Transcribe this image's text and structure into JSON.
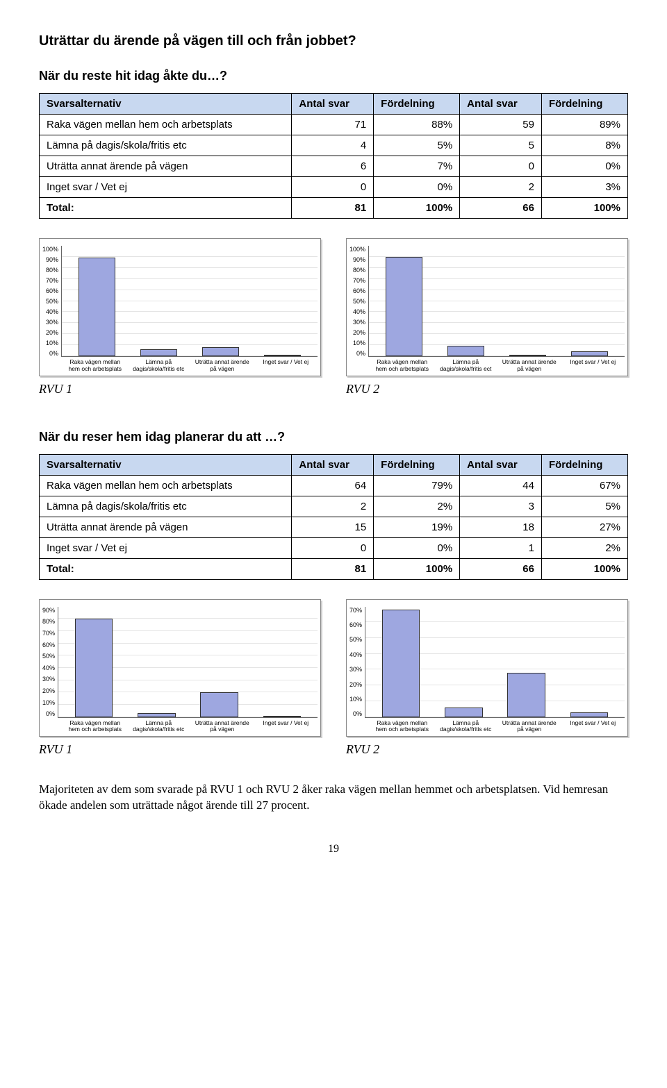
{
  "q1": {
    "title": "Uträttar du ärende på vägen till och från jobbet?",
    "subtitle": "När du reste hit idag åkte du…?",
    "table": {
      "headers": [
        "Svarsalternativ",
        "Antal svar",
        "Fördelning",
        "Antal svar",
        "Fördelning"
      ],
      "rows": [
        {
          "label": "Raka vägen mellan hem och arbetsplats",
          "v": [
            "71",
            "88%",
            "59",
            "89%"
          ]
        },
        {
          "label": "Lämna på dagis/skola/fritis etc",
          "v": [
            "4",
            "5%",
            "5",
            "8%"
          ]
        },
        {
          "label": "Uträtta annat ärende på vägen",
          "v": [
            "6",
            "7%",
            "0",
            "0%"
          ]
        },
        {
          "label": "Inget svar / Vet ej",
          "v": [
            "0",
            "0%",
            "2",
            "3%"
          ]
        }
      ],
      "total": {
        "label": "Total:",
        "v": [
          "81",
          "100%",
          "66",
          "100%"
        ]
      }
    },
    "chart_left": {
      "type": "bar",
      "ymax": 100,
      "ystep": 10,
      "yticks": [
        "100%",
        "90%",
        "80%",
        "70%",
        "60%",
        "50%",
        "40%",
        "30%",
        "20%",
        "10%",
        "0%"
      ],
      "categories": [
        "Raka vägen mellan hem och arbetsplats",
        "Lämna på dagis/skola/fritis etc",
        "Uträtta annat ärende på vägen",
        "Inget svar / Vet ej"
      ],
      "values": [
        88,
        5,
        7,
        0
      ],
      "bar_color": "#9ea7e0",
      "border_color": "#333",
      "grid_color": "#e4e4e4",
      "bg": "#ffffff"
    },
    "chart_right": {
      "type": "bar",
      "ymax": 100,
      "ystep": 10,
      "yticks": [
        "100%",
        "90%",
        "80%",
        "70%",
        "60%",
        "50%",
        "40%",
        "30%",
        "20%",
        "10%",
        "0%"
      ],
      "categories": [
        "Raka vägen mellan hem och arbetsplats",
        "Lämna på dagis/skola/fritis ect",
        "Uträtta annat ärende på vägen",
        "Inget svar / Vet ej"
      ],
      "values": [
        89,
        8,
        0,
        3
      ],
      "bar_color": "#9ea7e0",
      "border_color": "#333",
      "grid_color": "#e4e4e4",
      "bg": "#ffffff"
    },
    "rvu_left": "RVU 1",
    "rvu_right": "RVU 2"
  },
  "q2": {
    "title": "När du reser hem idag planerar du att …?",
    "table": {
      "headers": [
        "Svarsalternativ",
        "Antal svar",
        "Fördelning",
        "Antal svar",
        "Fördelning"
      ],
      "rows": [
        {
          "label": "Raka vägen mellan hem och arbetsplats",
          "v": [
            "64",
            "79%",
            "44",
            "67%"
          ]
        },
        {
          "label": "Lämna på dagis/skola/fritis etc",
          "v": [
            "2",
            "2%",
            "3",
            "5%"
          ]
        },
        {
          "label": "Uträtta annat ärende på vägen",
          "v": [
            "15",
            "19%",
            "18",
            "27%"
          ]
        },
        {
          "label": "Inget svar / Vet ej",
          "v": [
            "0",
            "0%",
            "1",
            "2%"
          ]
        }
      ],
      "total": {
        "label": "Total:",
        "v": [
          "81",
          "100%",
          "66",
          "100%"
        ]
      }
    },
    "chart_left": {
      "type": "bar",
      "ymax": 90,
      "ystep": 10,
      "yticks": [
        "90%",
        "80%",
        "70%",
        "60%",
        "50%",
        "40%",
        "30%",
        "20%",
        "10%",
        "0%"
      ],
      "categories": [
        "Raka vägen mellan hem och arbetsplats",
        "Lämna på dagis/skola/fritis etc",
        "Uträtta annat ärende på vägen",
        "Inget svar / Vet ej"
      ],
      "values": [
        79,
        2,
        19,
        0
      ],
      "bar_color": "#9ea7e0",
      "border_color": "#333",
      "grid_color": "#e4e4e4",
      "bg": "#ffffff"
    },
    "chart_right": {
      "type": "bar",
      "ymax": 70,
      "ystep": 10,
      "yticks": [
        "70%",
        "60%",
        "50%",
        "40%",
        "30%",
        "20%",
        "10%",
        "0%"
      ],
      "categories": [
        "Raka vägen mellan hem och arbetsplats",
        "Lämna på dagis/skola/fritis etc",
        "Uträtta annat ärende på vägen",
        "Inget svar / Vet ej"
      ],
      "values": [
        67,
        5,
        27,
        2
      ],
      "bar_color": "#9ea7e0",
      "border_color": "#333",
      "grid_color": "#e4e4e4",
      "bg": "#ffffff"
    },
    "rvu_left": "RVU 1",
    "rvu_right": "RVU 2"
  },
  "body_text": "Majoriteten av dem som svarade på RVU 1 och RVU 2 åker raka vägen mellan hemmet och arbetsplatsen. Vid hemresan ökade andelen som uträttade något ärende till 27 procent.",
  "page_number": "19"
}
